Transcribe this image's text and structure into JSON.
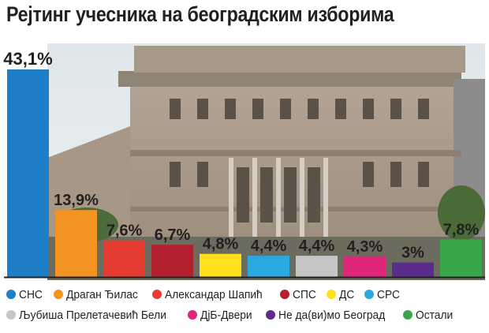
{
  "chart_data": {
    "type": "bar",
    "title": "Рејтинг учесника на београдским изборима",
    "categories": [
      "СНС",
      "Драган Ђилас",
      "Александар Шапић",
      "СПС",
      "ДС",
      "СРС",
      "Љубиша Прелетачевић Бели",
      "ДјБ-Двери",
      "Не да(ви)мо Београд",
      "Остали"
    ],
    "values": [
      43.1,
      13.9,
      7.6,
      6.7,
      4.8,
      4.4,
      4.4,
      4.3,
      3,
      7.8
    ],
    "value_labels": [
      "43,1%",
      "13,9%",
      "7,6%",
      "6,7%",
      "4,8%",
      "4,4%",
      "4,4%",
      "4,3%",
      "3%",
      "7,8%"
    ],
    "colors": [
      "#1e7fc8",
      "#f39322",
      "#e63c2f",
      "#b5202e",
      "#ffe01b",
      "#2aa8df",
      "#c6c6c6",
      "#e0267a",
      "#5a2c8c",
      "#3aa64b"
    ],
    "ylim": [
      0,
      43.1
    ],
    "legend": "bottom",
    "grid": false
  }
}
